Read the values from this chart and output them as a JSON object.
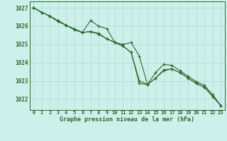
{
  "title": "Graphe pression niveau de la mer (hPa)",
  "background_color": "#cef0ea",
  "grid_color": "#a8ddd6",
  "line_color": "#2d6a2d",
  "xlim": [
    -0.5,
    23.5
  ],
  "ylim": [
    1021.4,
    1027.35
  ],
  "yticks": [
    1022,
    1023,
    1024,
    1025,
    1026,
    1027
  ],
  "xticks": [
    0,
    1,
    2,
    3,
    4,
    5,
    6,
    7,
    8,
    9,
    10,
    11,
    12,
    13,
    14,
    15,
    16,
    17,
    18,
    19,
    20,
    21,
    22,
    23
  ],
  "series": [
    [
      1027.0,
      1026.75,
      1026.55,
      1026.3,
      1026.05,
      1025.8,
      1025.65,
      1025.7,
      1025.6,
      1025.3,
      1025.1,
      1024.9,
      1024.55,
      1022.85,
      1022.8,
      1023.15,
      1023.55,
      1023.65,
      1023.45,
      1023.15,
      1022.85,
      1022.65,
      1022.15,
      1021.65
    ],
    [
      1027.0,
      1026.75,
      1026.55,
      1026.25,
      1026.05,
      1025.85,
      1025.65,
      1026.3,
      1026.0,
      1025.85,
      1025.1,
      1025.0,
      1025.1,
      1024.35,
      1022.8,
      1023.15,
      1023.6,
      1023.65,
      1023.45,
      1023.15,
      1022.85,
      1022.65,
      1022.15,
      1021.65
    ],
    [
      1027.0,
      1026.75,
      1026.55,
      1026.25,
      1026.05,
      1025.8,
      1025.65,
      1025.7,
      1025.55,
      1025.3,
      1025.1,
      1024.9,
      1024.55,
      1023.0,
      1022.8,
      1023.45,
      1023.9,
      1023.85,
      1023.55,
      1023.25,
      1022.95,
      1022.75,
      1022.25,
      1021.65
    ]
  ]
}
